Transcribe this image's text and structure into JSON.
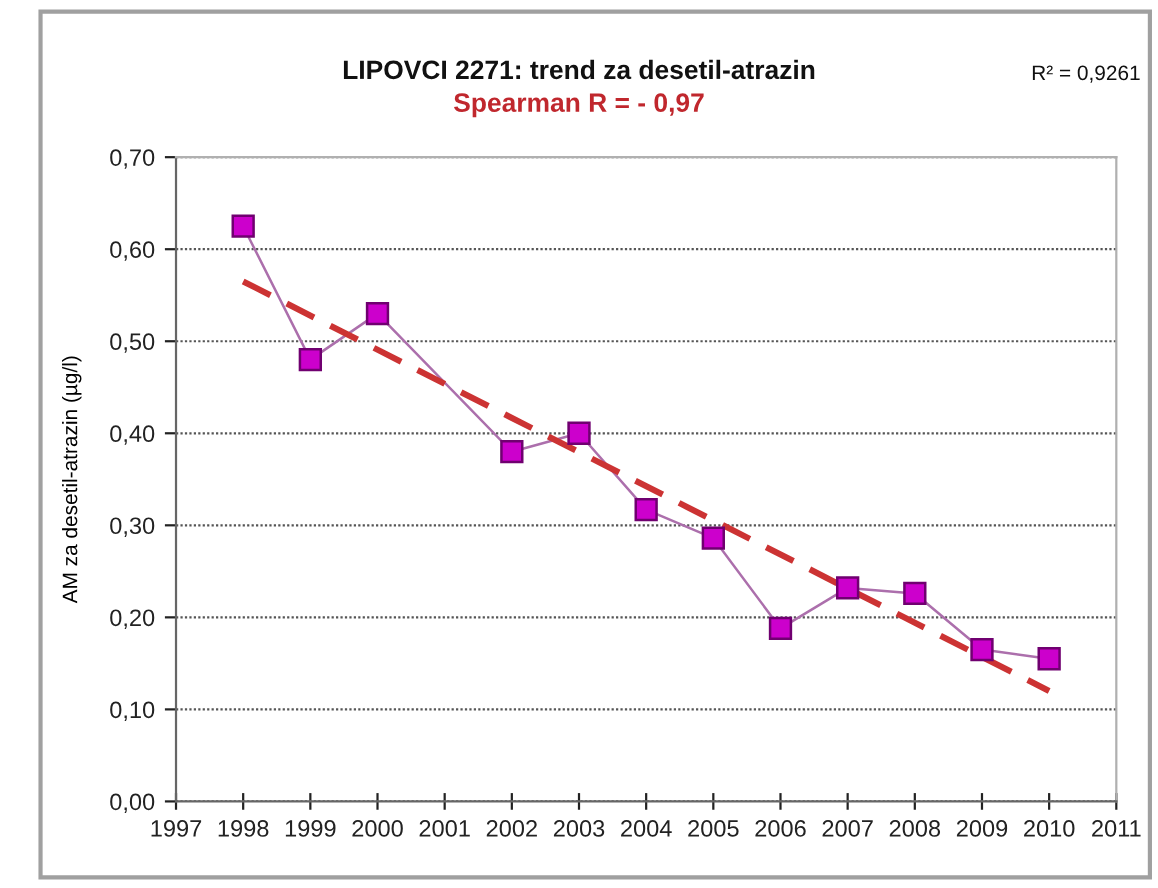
{
  "chart_data": {
    "type": "line",
    "title": "LIPOVCI 2271: trend za desetil-atrazin",
    "subtitle": "Spearman R = - 0,97",
    "ylabel": "AM za desetil-atrazin (µg/l)",
    "annotations": [
      "R² = 0,9261"
    ],
    "series": [
      {
        "color": "#cc00cc",
        "marker": "square",
        "line_style": "solid",
        "x": [
          1998,
          1999,
          2000,
          2002,
          2003,
          2004,
          2005,
          2006,
          2007,
          2008,
          2009,
          2010
        ],
        "values": [
          0.625,
          0.48,
          0.53,
          0.38,
          0.4,
          0.317,
          0.286,
          0.188,
          0.232,
          0.226,
          0.165,
          0.155
        ]
      },
      {
        "color": "#cc3333",
        "marker": "none",
        "line_style": "dashed",
        "x": [
          1998,
          2010
        ],
        "values": [
          0.565,
          0.12
        ]
      }
    ],
    "xlim": [
      1997,
      2011
    ],
    "xticks": [
      1997,
      1998,
      1999,
      2000,
      2001,
      2002,
      2003,
      2004,
      2005,
      2006,
      2007,
      2008,
      2009,
      2010,
      2011
    ],
    "ylim": [
      0,
      0.7
    ],
    "yticks": [
      {
        "value": 0,
        "label": "0,00"
      },
      {
        "value": 0.1,
        "label": "0,10"
      },
      {
        "value": 0.2,
        "label": "0,20"
      },
      {
        "value": 0.3,
        "label": "0,30"
      },
      {
        "value": 0.4,
        "label": "0,40"
      },
      {
        "value": 0.5,
        "label": "0,50"
      },
      {
        "value": 0.6,
        "label": "0,60"
      },
      {
        "value": 0.7,
        "label": "0,70"
      }
    ],
    "grid": "y",
    "legend": false
  }
}
